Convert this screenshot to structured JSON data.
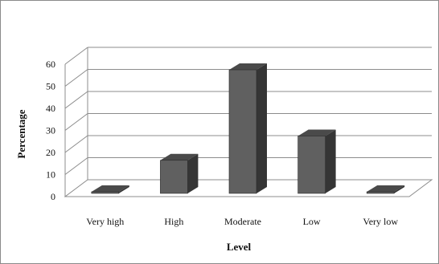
{
  "chart_data": {
    "type": "bar",
    "style": "3d-column",
    "categories": [
      "Very high",
      "High",
      "Moderate",
      "Low",
      "Very low"
    ],
    "series": [
      {
        "values": [
          0,
          15,
          56,
          26,
          0
        ]
      }
    ],
    "title": "",
    "xlabel": "Level",
    "ylabel": "Percentage",
    "ylim": [
      0,
      60
    ],
    "yticks": [
      "0",
      "10",
      "20",
      "30",
      "40",
      "50",
      "60"
    ],
    "grid": true,
    "legend": "none",
    "colors": {
      "bar_front": "#606060",
      "bar_side": "#353535",
      "bar_top": "#4a4a4a",
      "grid": "#8c8c8c",
      "text": "#111111"
    }
  }
}
